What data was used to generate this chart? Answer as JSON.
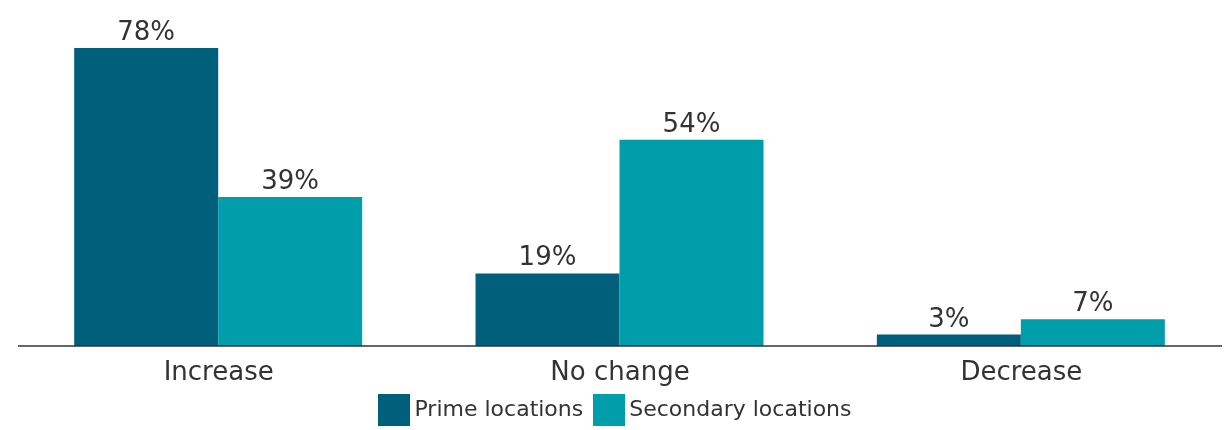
{
  "chart_data": {
    "type": "bar",
    "categories": [
      "Increase",
      "No change",
      "Decrease"
    ],
    "series": [
      {
        "name": "Prime locations",
        "color": "#005f7a",
        "values": [
          78,
          19,
          3
        ],
        "value_labels": [
          "78%",
          "19%",
          "3%"
        ]
      },
      {
        "name": "Secondary locations",
        "color": "#009dab",
        "values": [
          39,
          54,
          7
        ],
        "value_labels": [
          "39%",
          "54%",
          "7%"
        ]
      }
    ],
    "legend": "bottom"
  }
}
